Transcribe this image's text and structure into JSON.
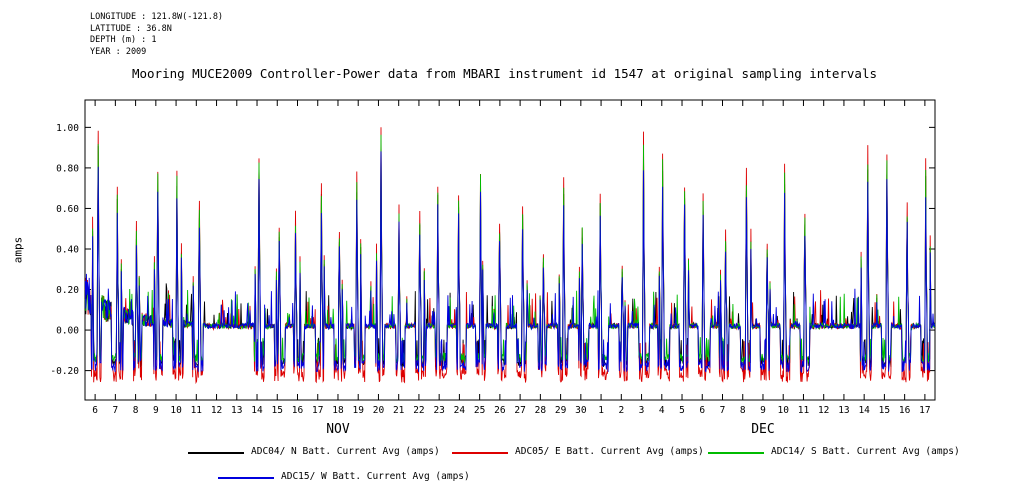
{
  "meta": {
    "lines": [
      "LONGITUDE : 121.8W(-121.8)",
      "LATITUDE : 36.8N",
      "DEPTH (m) : 1",
      "YEAR : 2009"
    ]
  },
  "title": "Mooring MUCE2009 Controller-Power data from MBARI instrument id 1547 at original sampling intervals",
  "chart_data": {
    "type": "line",
    "title": "Mooring MUCE2009 Controller-Power data from MBARI instrument id 1547 at original sampling intervals",
    "xlabel": "",
    "ylabel": "amps",
    "ylim": [
      -0.345,
      1.135
    ],
    "y_ticks": [
      -0.2,
      0.0,
      0.2,
      0.4,
      0.6,
      0.8,
      1.0
    ],
    "x_month_labels": [
      "NOV",
      "DEC"
    ],
    "grid": false,
    "legend_position": "bottom",
    "series": [
      {
        "name": "ADC04/ N Batt. Current Avg (amps)",
        "color": "#000000",
        "scale": 0.9,
        "dip": -0.16
      },
      {
        "name": "ADC05/ E Batt. Current Avg (amps)",
        "color": "#dd0000",
        "scale": 1.0,
        "dip": -0.225
      },
      {
        "name": "ADC14/ S Batt. Current Avg (amps)",
        "color": "#00bb00",
        "scale": 0.94,
        "dip": -0.14
      },
      {
        "name": "ADC15/ W Batt. Current Avg (amps)",
        "color": "#0000dd",
        "scale": 0.83,
        "dip": -0.18
      }
    ],
    "days": [
      {
        "m": "NOV",
        "d": 6,
        "p": 0.97,
        "b": 0.18
      },
      {
        "m": "NOV",
        "d": 7,
        "p": 0.72,
        "b": 0.1
      },
      {
        "m": "NOV",
        "d": 8,
        "p": 0.52,
        "b": 0.07
      },
      {
        "m": "NOV",
        "d": 9,
        "p": 0.8,
        "b": 0.05
      },
      {
        "m": "NOV",
        "d": 10,
        "p": 0.8,
        "b": 0.04
      },
      {
        "m": "NOV",
        "d": 11,
        "p": 0.62,
        "b": 0.03
      },
      {
        "m": "NOV",
        "d": 12,
        "p": 0.0,
        "b": 0.02
      },
      {
        "m": "NOV",
        "d": 13,
        "p": 0.0,
        "b": 0.02
      },
      {
        "m": "NOV",
        "d": 14,
        "p": 0.88,
        "b": 0.02
      },
      {
        "m": "NOV",
        "d": 15,
        "p": 0.52,
        "b": 0.02
      },
      {
        "m": "NOV",
        "d": 16,
        "p": 0.57,
        "b": 0.02
      },
      {
        "m": "NOV",
        "d": 17,
        "p": 0.72,
        "b": 0.02
      },
      {
        "m": "NOV",
        "d": 18,
        "p": 0.48,
        "b": 0.02
      },
      {
        "m": "NOV",
        "d": 19,
        "p": 0.77,
        "b": 0.02
      },
      {
        "m": "NOV",
        "d": 20,
        "p": 1.04,
        "b": 0.02
      },
      {
        "m": "NOV",
        "d": 21,
        "p": 0.62,
        "b": 0.02
      },
      {
        "m": "NOV",
        "d": 22,
        "p": 0.57,
        "b": 0.02
      },
      {
        "m": "NOV",
        "d": 23,
        "p": 0.72,
        "b": 0.02
      },
      {
        "m": "NOV",
        "d": 24,
        "p": 0.67,
        "b": 0.02
      },
      {
        "m": "NOV",
        "d": 25,
        "p": 0.8,
        "b": 0.02
      },
      {
        "m": "NOV",
        "d": 26,
        "p": 0.52,
        "b": 0.02
      },
      {
        "m": "NOV",
        "d": 27,
        "p": 0.62,
        "b": 0.02
      },
      {
        "m": "NOV",
        "d": 28,
        "p": 0.38,
        "b": 0.02
      },
      {
        "m": "NOV",
        "d": 29,
        "p": 0.77,
        "b": 0.02
      },
      {
        "m": "NOV",
        "d": 30,
        "p": 0.52,
        "b": 0.02
      },
      {
        "m": "DEC",
        "d": 1,
        "p": 0.67,
        "b": 0.02
      },
      {
        "m": "DEC",
        "d": 2,
        "p": 0.32,
        "b": 0.02
      },
      {
        "m": "DEC",
        "d": 3,
        "p": 0.97,
        "b": 0.02
      },
      {
        "m": "DEC",
        "d": 4,
        "p": 0.88,
        "b": 0.02
      },
      {
        "m": "DEC",
        "d": 5,
        "p": 0.72,
        "b": 0.02
      },
      {
        "m": "DEC",
        "d": 6,
        "p": 0.67,
        "b": 0.02
      },
      {
        "m": "DEC",
        "d": 7,
        "p": 0.48,
        "b": 0.02
      },
      {
        "m": "DEC",
        "d": 8,
        "p": 0.77,
        "b": 0.02
      },
      {
        "m": "DEC",
        "d": 9,
        "p": 0.42,
        "b": 0.02
      },
      {
        "m": "DEC",
        "d": 10,
        "p": 0.82,
        "b": 0.02
      },
      {
        "m": "DEC",
        "d": 11,
        "p": 0.57,
        "b": 0.02
      },
      {
        "m": "DEC",
        "d": 12,
        "p": 0.0,
        "b": 0.02
      },
      {
        "m": "DEC",
        "d": 13,
        "p": 0.0,
        "b": 0.02
      },
      {
        "m": "DEC",
        "d": 14,
        "p": 0.88,
        "b": 0.02
      },
      {
        "m": "DEC",
        "d": 15,
        "p": 0.88,
        "b": 0.02
      },
      {
        "m": "DEC",
        "d": 16,
        "p": 0.62,
        "b": 0.02
      },
      {
        "m": "DEC",
        "d": 17,
        "p": 0.82,
        "b": 0.02
      }
    ]
  }
}
